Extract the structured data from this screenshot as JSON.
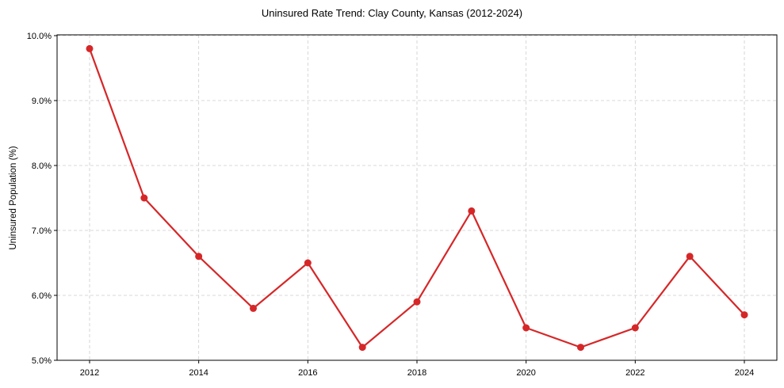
{
  "chart_data": {
    "type": "line",
    "title": "Uninsured Rate Trend: Clay County, Kansas (2012-2024)",
    "xlabel": "",
    "ylabel": "Uninsured Population (%)",
    "x": [
      2012,
      2013,
      2014,
      2015,
      2016,
      2017,
      2018,
      2019,
      2020,
      2021,
      2022,
      2023,
      2024
    ],
    "series": [
      {
        "name": "Uninsured Rate",
        "values": [
          9.8,
          7.5,
          6.6,
          5.8,
          6.5,
          5.2,
          5.9,
          7.3,
          5.5,
          5.2,
          5.5,
          6.6,
          5.7
        ],
        "color": "#d62728",
        "marker": "circle"
      }
    ],
    "xticks": [
      "2012",
      "2014",
      "2016",
      "2018",
      "2020",
      "2022",
      "2024"
    ],
    "yticks": [
      "5.0%",
      "6.0%",
      "7.0%",
      "8.0%",
      "9.0%",
      "10.0%"
    ],
    "ylim": [
      5.0,
      10.0
    ],
    "xlim": [
      2011.4,
      2024.6
    ],
    "grid": true,
    "legend": null
  }
}
